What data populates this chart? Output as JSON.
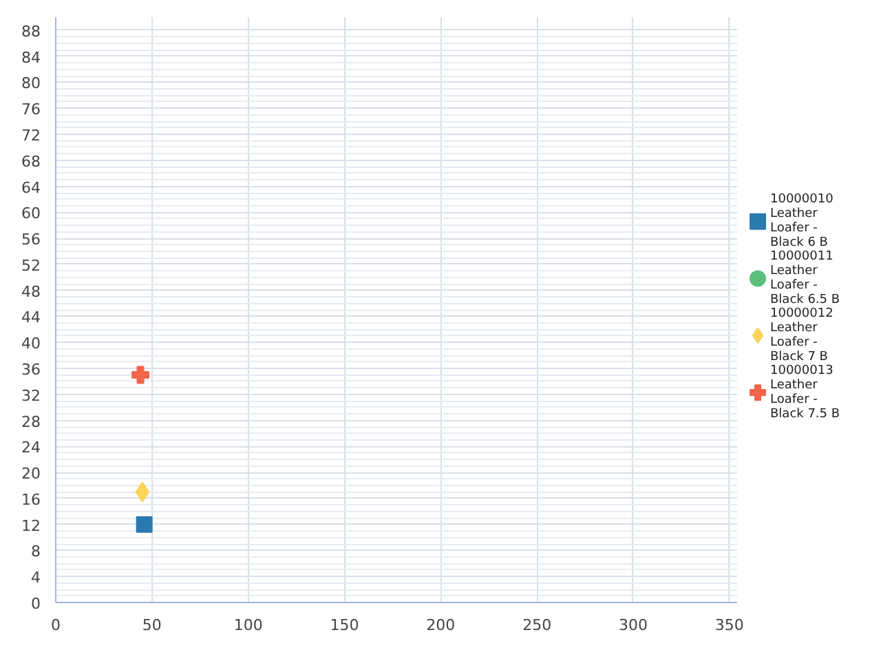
{
  "chart_data": {
    "type": "scatter",
    "series": [
      {
        "name": "10000010 Leather Loafer - Black 6 B",
        "color": "#2a7ab0",
        "marker": "square",
        "x": [
          46
        ],
        "values": [
          12
        ]
      },
      {
        "name": "10000011 Leather Loafer - Black 6.5 B",
        "color": "#5cbf7c",
        "marker": "circle",
        "x": [
          null
        ],
        "values": [
          null
        ]
      },
      {
        "name": "10000012 Leather Loafer - Black 7 B",
        "color": "#fdd35b",
        "marker": "diamond",
        "x": [
          45
        ],
        "values": [
          17
        ]
      },
      {
        "name": "10000013 Leather Loafer - Black 7.5 B",
        "color": "#f4644a",
        "marker": "cross",
        "x": [
          44
        ],
        "values": [
          35
        ]
      }
    ],
    "xlim": [
      0,
      354
    ],
    "xticks": [
      0,
      50,
      100,
      150,
      200,
      250,
      300,
      350
    ],
    "ylim": [
      0,
      90
    ],
    "yticks": [
      0,
      4,
      8,
      12,
      16,
      20,
      24,
      28,
      32,
      36,
      40,
      44,
      48,
      52,
      56,
      60,
      64,
      68,
      72,
      76,
      80,
      84,
      88
    ],
    "grid": true,
    "legend": "right"
  }
}
